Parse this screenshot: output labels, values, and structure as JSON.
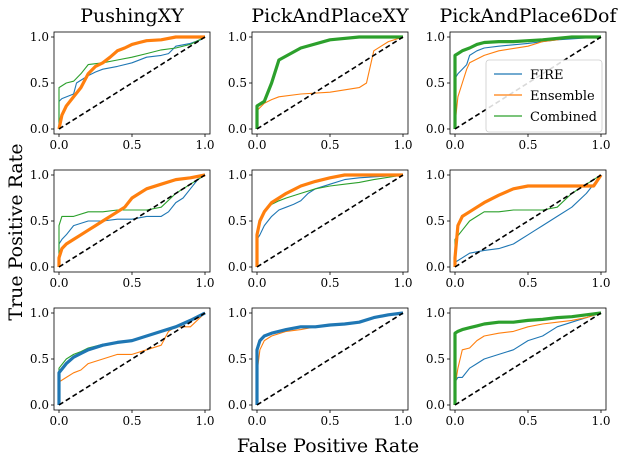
{
  "chart_data": {
    "type": "line",
    "figure": {
      "xlabel": "False Positive Rate",
      "ylabel": "True Positive Rate",
      "column_titles": [
        "PushingXY",
        "PickAndPlaceXY",
        "PickAndPlace6Dof"
      ],
      "xticks": [
        "0.0",
        "0.5",
        "1.0"
      ],
      "yticks": [
        "0.0",
        "0.5",
        "1.0"
      ],
      "xlim": [
        0,
        1
      ],
      "ylim": [
        0,
        1
      ],
      "legend": {
        "location": "right (top-right panel)",
        "entries": [
          "FIRE",
          "Ensemble",
          "Combined"
        ]
      },
      "colors": {
        "FIRE": "#1f77b4",
        "Ensemble": "#ff7f0e",
        "Combined": "#2ca02c",
        "chance": "#000000"
      }
    },
    "panels": [
      {
        "row": 0,
        "col": 0,
        "title": "PushingXY",
        "emphasis": "Ensemble",
        "series": [
          {
            "name": "FIRE",
            "x": [
              0,
              0,
              0.02,
              0.1,
              0.12,
              0.2,
              0.25,
              0.3,
              0.4,
              0.5,
              0.6,
              0.7,
              0.75,
              0.8,
              0.9,
              0.97,
              1
            ],
            "y": [
              0,
              0.3,
              0.33,
              0.38,
              0.5,
              0.58,
              0.62,
              0.65,
              0.68,
              0.72,
              0.78,
              0.8,
              0.82,
              0.9,
              0.93,
              0.97,
              1
            ]
          },
          {
            "name": "Ensemble",
            "x": [
              0,
              0.02,
              0.05,
              0.1,
              0.15,
              0.2,
              0.25,
              0.3,
              0.35,
              0.4,
              0.45,
              0.5,
              0.55,
              0.6,
              0.7,
              0.8,
              0.9,
              1
            ],
            "y": [
              0,
              0.15,
              0.25,
              0.35,
              0.45,
              0.6,
              0.68,
              0.72,
              0.78,
              0.85,
              0.88,
              0.92,
              0.94,
              0.96,
              0.97,
              1,
              1,
              1
            ]
          },
          {
            "name": "Combined",
            "x": [
              0,
              0,
              0.05,
              0.1,
              0.15,
              0.2,
              0.3,
              0.4,
              0.5,
              0.6,
              0.7,
              0.8,
              0.9,
              1
            ],
            "y": [
              0,
              0.45,
              0.5,
              0.52,
              0.6,
              0.7,
              0.72,
              0.75,
              0.78,
              0.82,
              0.86,
              0.88,
              0.92,
              1
            ]
          }
        ]
      },
      {
        "row": 0,
        "col": 1,
        "title": "PickAndPlaceXY",
        "emphasis": "Combined",
        "series": [
          {
            "name": "FIRE",
            "x": [
              0,
              0,
              0.05,
              0.1,
              0.15,
              0.3,
              0.5,
              0.7,
              0.9,
              1
            ],
            "y": [
              0,
              0.25,
              0.3,
              0.5,
              0.75,
              0.88,
              0.97,
              1,
              1,
              1
            ]
          },
          {
            "name": "Ensemble",
            "x": [
              0,
              0,
              0.05,
              0.1,
              0.15,
              0.3,
              0.5,
              0.7,
              0.75,
              0.8,
              0.9,
              1
            ],
            "y": [
              0,
              0.2,
              0.28,
              0.32,
              0.35,
              0.38,
              0.4,
              0.45,
              0.5,
              0.85,
              0.95,
              1
            ]
          },
          {
            "name": "Combined",
            "x": [
              0,
              0,
              0.05,
              0.1,
              0.15,
              0.3,
              0.5,
              0.7,
              0.9,
              1
            ],
            "y": [
              0,
              0.25,
              0.3,
              0.5,
              0.75,
              0.88,
              0.97,
              1,
              1,
              1
            ]
          }
        ]
      },
      {
        "row": 0,
        "col": 2,
        "title": "PickAndPlace6Dof",
        "emphasis": "Combined",
        "series": [
          {
            "name": "FIRE",
            "x": [
              0,
              0,
              0.02,
              0.05,
              0.08,
              0.1,
              0.15,
              0.2,
              0.3,
              0.5,
              0.7,
              1
            ],
            "y": [
              0,
              0.55,
              0.6,
              0.65,
              0.7,
              0.8,
              0.85,
              0.88,
              0.9,
              0.93,
              0.97,
              1
            ]
          },
          {
            "name": "Ensemble",
            "x": [
              0,
              0,
              0.02,
              0.05,
              0.08,
              0.1,
              0.2,
              0.3,
              0.5,
              0.6,
              0.7,
              0.8,
              1
            ],
            "y": [
              0,
              0.05,
              0.35,
              0.5,
              0.65,
              0.72,
              0.8,
              0.85,
              0.9,
              0.95,
              0.97,
              1,
              1
            ]
          },
          {
            "name": "Combined",
            "x": [
              0,
              0,
              0.02,
              0.05,
              0.1,
              0.15,
              0.2,
              0.3,
              0.4,
              0.6,
              0.8,
              1
            ],
            "y": [
              0,
              0.8,
              0.82,
              0.85,
              0.88,
              0.92,
              0.94,
              0.95,
              0.95,
              0.97,
              1,
              1
            ]
          }
        ]
      },
      {
        "row": 1,
        "col": 0,
        "title": "",
        "emphasis": "Ensemble",
        "series": [
          {
            "name": "FIRE",
            "x": [
              0,
              0,
              0.02,
              0.05,
              0.1,
              0.2,
              0.3,
              0.4,
              0.5,
              0.6,
              0.7,
              0.75,
              0.8,
              0.85,
              0.9,
              0.95,
              1
            ],
            "y": [
              0,
              0.25,
              0.3,
              0.35,
              0.45,
              0.5,
              0.5,
              0.52,
              0.52,
              0.55,
              0.55,
              0.6,
              0.7,
              0.75,
              0.85,
              0.95,
              1
            ]
          },
          {
            "name": "Ensemble",
            "x": [
              0,
              0,
              0.02,
              0.05,
              0.1,
              0.15,
              0.2,
              0.25,
              0.3,
              0.4,
              0.45,
              0.5,
              0.55,
              0.6,
              0.7,
              0.8,
              0.9,
              1
            ],
            "y": [
              0,
              0.1,
              0.2,
              0.25,
              0.3,
              0.35,
              0.4,
              0.45,
              0.5,
              0.6,
              0.65,
              0.75,
              0.8,
              0.85,
              0.9,
              0.95,
              0.97,
              1
            ]
          },
          {
            "name": "Combined",
            "x": [
              0,
              0,
              0.02,
              0.05,
              0.1,
              0.2,
              0.3,
              0.4,
              0.5,
              0.6,
              0.7,
              0.8,
              0.9,
              1
            ],
            "y": [
              0,
              0.45,
              0.55,
              0.55,
              0.55,
              0.6,
              0.6,
              0.62,
              0.62,
              0.62,
              0.65,
              0.8,
              0.9,
              1
            ]
          }
        ]
      },
      {
        "row": 1,
        "col": 1,
        "title": "",
        "emphasis": "Ensemble",
        "series": [
          {
            "name": "FIRE",
            "x": [
              0,
              0,
              0.02,
              0.05,
              0.1,
              0.15,
              0.2,
              0.25,
              0.3,
              0.35,
              0.4,
              0.5,
              0.6,
              0.7,
              1
            ],
            "y": [
              0,
              0.3,
              0.35,
              0.45,
              0.55,
              0.62,
              0.65,
              0.68,
              0.72,
              0.8,
              0.85,
              0.9,
              0.95,
              0.97,
              1
            ]
          },
          {
            "name": "Ensemble",
            "x": [
              0,
              0,
              0.02,
              0.05,
              0.1,
              0.15,
              0.2,
              0.3,
              0.4,
              0.5,
              0.6,
              1
            ],
            "y": [
              0,
              0.35,
              0.5,
              0.6,
              0.7,
              0.75,
              0.8,
              0.88,
              0.93,
              0.97,
              1,
              1
            ]
          },
          {
            "name": "Combined",
            "x": [
              0,
              0,
              0.02,
              0.05,
              0.1,
              0.15,
              0.2,
              0.3,
              0.4,
              0.5,
              0.6,
              0.7,
              0.8,
              1
            ],
            "y": [
              0,
              0.35,
              0.5,
              0.6,
              0.68,
              0.72,
              0.75,
              0.8,
              0.85,
              0.88,
              0.9,
              0.92,
              0.95,
              1
            ]
          }
        ]
      },
      {
        "row": 1,
        "col": 2,
        "title": "",
        "emphasis": "Ensemble",
        "series": [
          {
            "name": "FIRE",
            "x": [
              0,
              0,
              0.05,
              0.1,
              0.2,
              0.3,
              0.4,
              0.45,
              0.5,
              0.55,
              0.6,
              0.7,
              0.8,
              0.9,
              1
            ],
            "y": [
              0,
              0.05,
              0.1,
              0.15,
              0.18,
              0.2,
              0.25,
              0.3,
              0.35,
              0.4,
              0.45,
              0.55,
              0.65,
              0.8,
              1
            ]
          },
          {
            "name": "Ensemble",
            "x": [
              0,
              0,
              0.02,
              0.05,
              0.1,
              0.15,
              0.2,
              0.3,
              0.4,
              0.5,
              0.6,
              0.7,
              0.95,
              1
            ],
            "y": [
              0,
              0.1,
              0.45,
              0.55,
              0.6,
              0.65,
              0.7,
              0.78,
              0.85,
              0.88,
              0.88,
              0.88,
              0.88,
              1
            ]
          },
          {
            "name": "Combined",
            "x": [
              0,
              0,
              0.05,
              0.1,
              0.15,
              0.2,
              0.3,
              0.4,
              0.5,
              0.6,
              0.7,
              0.8,
              0.9,
              1
            ],
            "y": [
              0,
              0.3,
              0.4,
              0.5,
              0.55,
              0.6,
              0.6,
              0.62,
              0.62,
              0.62,
              0.65,
              0.8,
              0.9,
              1
            ]
          }
        ]
      },
      {
        "row": 2,
        "col": 0,
        "title": "",
        "emphasis": "FIRE",
        "series": [
          {
            "name": "FIRE",
            "x": [
              0,
              0,
              0.05,
              0.1,
              0.15,
              0.2,
              0.3,
              0.4,
              0.5,
              0.6,
              0.7,
              0.8,
              0.9,
              1
            ],
            "y": [
              0,
              0.35,
              0.45,
              0.52,
              0.56,
              0.6,
              0.65,
              0.68,
              0.7,
              0.75,
              0.8,
              0.85,
              0.92,
              1
            ]
          },
          {
            "name": "Ensemble",
            "x": [
              0,
              0,
              0.05,
              0.1,
              0.15,
              0.2,
              0.3,
              0.4,
              0.5,
              0.6,
              0.7,
              0.75,
              0.8,
              0.9,
              1
            ],
            "y": [
              0,
              0.25,
              0.3,
              0.35,
              0.38,
              0.45,
              0.5,
              0.55,
              0.55,
              0.6,
              0.65,
              0.8,
              0.85,
              0.85,
              1
            ]
          },
          {
            "name": "Combined",
            "x": [
              0,
              0,
              0.05,
              0.1,
              0.15,
              0.2,
              0.3,
              0.4,
              0.5,
              0.6,
              0.7,
              0.8,
              0.9,
              1
            ],
            "y": [
              0,
              0.4,
              0.5,
              0.55,
              0.58,
              0.62,
              0.66,
              0.68,
              0.7,
              0.75,
              0.8,
              0.85,
              0.92,
              1
            ]
          }
        ]
      },
      {
        "row": 2,
        "col": 1,
        "title": "",
        "emphasis": "FIRE",
        "series": [
          {
            "name": "FIRE",
            "x": [
              0,
              0,
              0.02,
              0.05,
              0.1,
              0.2,
              0.3,
              0.4,
              0.5,
              0.6,
              0.7,
              0.8,
              0.9,
              1
            ],
            "y": [
              0,
              0.6,
              0.7,
              0.75,
              0.78,
              0.82,
              0.85,
              0.85,
              0.87,
              0.88,
              0.9,
              0.95,
              0.98,
              1
            ]
          },
          {
            "name": "Ensemble",
            "x": [
              0,
              0,
              0.02,
              0.05,
              0.1,
              0.2,
              0.3,
              0.4,
              0.5,
              0.6,
              0.7,
              0.8,
              0.9,
              1
            ],
            "y": [
              0,
              0.35,
              0.6,
              0.7,
              0.75,
              0.8,
              0.82,
              0.85,
              0.88,
              0.88,
              0.9,
              0.95,
              0.98,
              1
            ]
          },
          {
            "name": "Combined",
            "x": [
              0,
              0,
              0.02,
              0.05,
              0.1,
              0.2,
              0.3,
              0.4,
              0.5,
              0.6,
              0.7,
              0.8,
              0.9,
              1
            ],
            "y": [
              0,
              0.6,
              0.7,
              0.75,
              0.78,
              0.82,
              0.85,
              0.85,
              0.87,
              0.88,
              0.9,
              0.95,
              0.98,
              1
            ]
          }
        ]
      },
      {
        "row": 2,
        "col": 2,
        "title": "",
        "emphasis": "Combined",
        "series": [
          {
            "name": "FIRE",
            "x": [
              0,
              0,
              0.02,
              0.05,
              0.1,
              0.15,
              0.2,
              0.3,
              0.4,
              0.5,
              0.6,
              0.7,
              0.8,
              0.9,
              1
            ],
            "y": [
              0,
              0.25,
              0.3,
              0.3,
              0.4,
              0.45,
              0.5,
              0.55,
              0.6,
              0.7,
              0.75,
              0.85,
              0.9,
              0.95,
              1
            ]
          },
          {
            "name": "Ensemble",
            "x": [
              0,
              0,
              0.02,
              0.05,
              0.1,
              0.15,
              0.2,
              0.3,
              0.4,
              0.5,
              0.6,
              0.7,
              0.8,
              0.9,
              1
            ],
            "y": [
              0,
              0.2,
              0.4,
              0.6,
              0.62,
              0.7,
              0.75,
              0.78,
              0.8,
              0.85,
              0.88,
              0.9,
              0.92,
              0.95,
              1
            ]
          },
          {
            "name": "Combined",
            "x": [
              0,
              0,
              0.02,
              0.05,
              0.1,
              0.15,
              0.2,
              0.3,
              0.4,
              0.5,
              0.6,
              0.7,
              0.8,
              0.9,
              1
            ],
            "y": [
              0,
              0.78,
              0.8,
              0.82,
              0.84,
              0.86,
              0.88,
              0.9,
              0.9,
              0.92,
              0.93,
              0.95,
              0.96,
              0.98,
              1
            ]
          }
        ]
      }
    ]
  }
}
